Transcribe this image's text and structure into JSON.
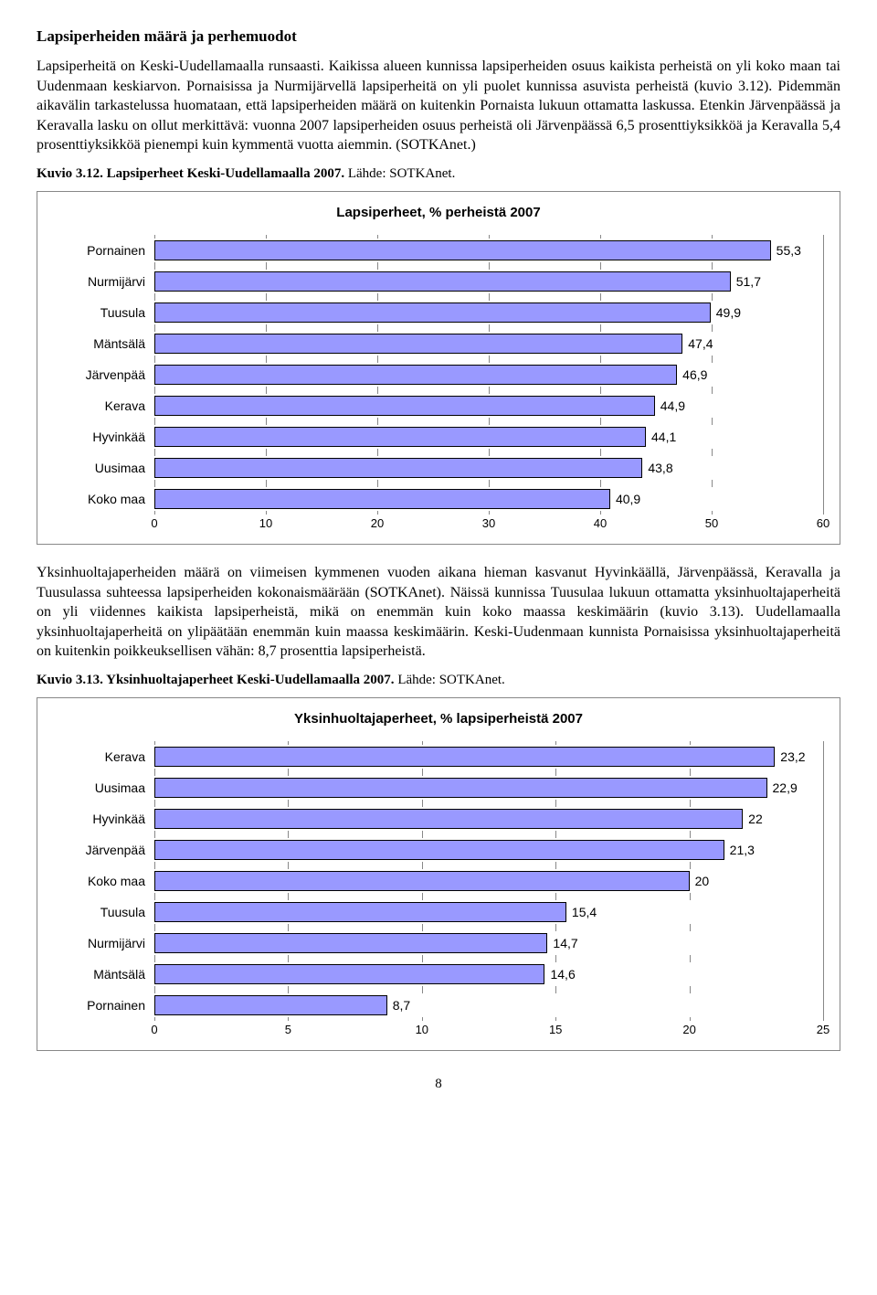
{
  "heading": "Lapsiperheiden määrä ja perhemuodot",
  "para1": "Lapsiperheitä on Keski-Uudellamaalla runsaasti. Kaikissa alueen kunnissa lapsiperheiden osuus kaikista perheistä on yli koko maan tai Uudenmaan keskiarvon. Pornaisissa ja Nurmijärvellä lapsiperheitä on yli puolet kunnissa asuvista perheistä (kuvio 3.12). Pidemmän aikavälin tarkastelussa huomataan, että lapsiperheiden määrä on kuitenkin Pornaista lukuun ottamatta laskussa. Etenkin Järvenpäässä ja Keravalla lasku on ollut merkittävä: vuonna 2007 lapsiperheiden osuus perheistä oli Järvenpäässä 6,5 prosenttiyksikköä ja Keravalla 5,4 prosenttiyksikköä pienempi kuin kymmentä vuotta aiemmin. (SOTKAnet.)",
  "caption1_bold": "Kuvio 3.12. Lapsiperheet Keski-Uudellamaalla 2007.",
  "caption1_rest": " Lähde: SOTKAnet.",
  "para2": "Yksinhuoltajaperheiden määrä on viimeisen kymmenen vuoden aikana hieman kasvanut Hyvinkäällä, Järvenpäässä, Keravalla ja Tuusulassa suhteessa lapsiperheiden kokonaismäärään (SOTKAnet). Näissä kunnissa Tuusulaa lukuun ottamatta yksinhuoltajaperheitä on yli viidennes kaikista lapsiperheistä, mikä on enemmän kuin koko maassa keskimäärin (kuvio 3.13). Uudellamaalla yksinhuoltajaperheitä on ylipäätään enemmän kuin maassa keskimäärin. Keski-Uudenmaan kunnista Pornaisissa yksinhuoltajaperheitä on kuitenkin poikkeuksellisen vähän: 8,7 prosenttia lapsiperheistä.",
  "caption2_bold": "Kuvio 3.13. Yksinhuoltajaperheet Keski-Uudellamaalla 2007.",
  "caption2_rest": " Lähde: SOTKAnet.",
  "chart1": {
    "type": "bar",
    "title": "Lapsiperheet, % perheistä 2007",
    "bar_color": "#9999ff",
    "border_color": "#000000",
    "grid_color": "#888888",
    "label_fontsize": 14,
    "xmin": 0,
    "xmax": 60,
    "xtick_step": 10,
    "ticks": [
      "0",
      "10",
      "20",
      "30",
      "40",
      "50",
      "60"
    ],
    "categories": [
      "Pornainen",
      "Nurmijärvi",
      "Tuusula",
      "Mäntsälä",
      "Järvenpää",
      "Kerava",
      "Hyvinkää",
      "Uusimaa",
      "Koko maa"
    ],
    "values": [
      55.3,
      51.7,
      49.9,
      47.4,
      46.9,
      44.9,
      44.1,
      43.8,
      40.9
    ],
    "value_labels": [
      "55,3",
      "51,7",
      "49,9",
      "47,4",
      "46,9",
      "44,9",
      "44,1",
      "43,8",
      "40,9"
    ]
  },
  "chart2": {
    "type": "bar",
    "title": "Yksinhuoltajaperheet, % lapsiperheistä 2007",
    "bar_color": "#9999ff",
    "border_color": "#000000",
    "grid_color": "#888888",
    "label_fontsize": 14,
    "xmin": 0,
    "xmax": 25,
    "xtick_step": 5,
    "ticks": [
      "0",
      "5",
      "10",
      "15",
      "20",
      "25"
    ],
    "categories": [
      "Kerava",
      "Uusimaa",
      "Hyvinkää",
      "Järvenpää",
      "Koko maa",
      "Tuusula",
      "Nurmijärvi",
      "Mäntsälä",
      "Pornainen"
    ],
    "values": [
      23.2,
      22.9,
      22.0,
      21.3,
      20.0,
      15.4,
      14.7,
      14.6,
      8.7
    ],
    "value_labels": [
      "23,2",
      "22,9",
      "22",
      "21,3",
      "20",
      "15,4",
      "14,7",
      "14,6",
      "8,7"
    ]
  },
  "page_number": "8"
}
